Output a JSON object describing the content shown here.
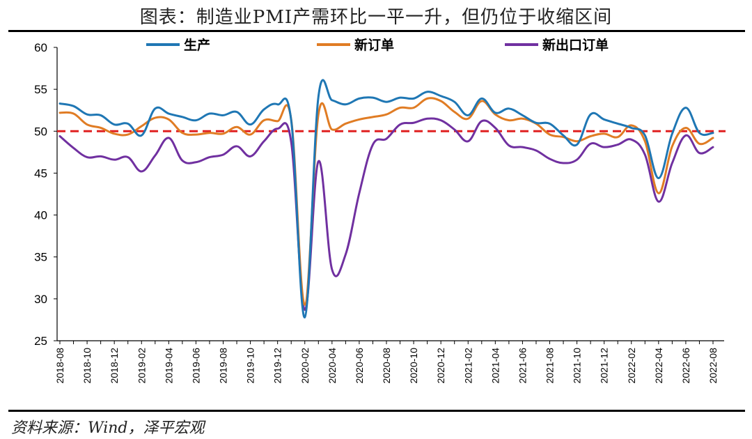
{
  "title": "图表：制造业PMI产需环比一平一升，但仍位于收缩区间",
  "source": "资料来源：Wind，泽平宏观",
  "chart_data": {
    "type": "line",
    "title": "图表：制造业PMI产需环比一平一升，但仍位于收缩区间",
    "xlabel": "",
    "ylabel": "",
    "ylim": [
      25,
      60
    ],
    "yticks": [
      25,
      30,
      35,
      40,
      45,
      50,
      55,
      60
    ],
    "x": [
      "2018-08",
      "2018-09",
      "2018-10",
      "2018-11",
      "2018-12",
      "2019-01",
      "2019-02",
      "2019-03",
      "2019-04",
      "2019-05",
      "2019-06",
      "2019-07",
      "2019-08",
      "2019-09",
      "2019-10",
      "2019-11",
      "2019-12",
      "2020-01",
      "2020-02",
      "2020-03",
      "2020-04",
      "2020-05",
      "2020-06",
      "2020-07",
      "2020-08",
      "2020-09",
      "2020-10",
      "2020-11",
      "2020-12",
      "2021-01",
      "2021-02",
      "2021-03",
      "2021-04",
      "2021-05",
      "2021-06",
      "2021-07",
      "2021-08",
      "2021-09",
      "2021-10",
      "2021-11",
      "2021-12",
      "2022-01",
      "2022-02",
      "2022-03",
      "2022-04",
      "2022-05",
      "2022-06",
      "2022-07",
      "2022-08"
    ],
    "x_tick_labels": [
      "2018-08",
      "2018-10",
      "2018-12",
      "2019-02",
      "2019-04",
      "2019-06",
      "2019-08",
      "2019-10",
      "2019-12",
      "2020-02",
      "2020-04",
      "2020-06",
      "2020-08",
      "2020-10",
      "2020-12",
      "2021-02",
      "2021-04",
      "2021-06",
      "2021-08",
      "2021-10",
      "2021-12",
      "2022-02",
      "2022-04",
      "2022-06",
      "2022-08"
    ],
    "series": [
      {
        "name": "生产",
        "color": "#1F77B4",
        "values": [
          53.3,
          53.0,
          52.0,
          51.9,
          50.8,
          50.9,
          49.5,
          52.7,
          52.1,
          51.7,
          51.3,
          52.1,
          51.9,
          52.3,
          50.8,
          52.6,
          53.2,
          51.3,
          27.8,
          54.1,
          53.7,
          53.2,
          53.9,
          54.0,
          53.5,
          54.0,
          53.9,
          54.7,
          54.2,
          53.5,
          51.9,
          53.9,
          52.2,
          52.7,
          51.9,
          51.0,
          50.9,
          49.5,
          48.4,
          52.0,
          51.4,
          50.9,
          50.4,
          49.5,
          44.4,
          49.7,
          52.8,
          49.8,
          49.8
        ]
      },
      {
        "name": "新订单",
        "color": "#E07C24",
        "values": [
          52.2,
          52.1,
          50.8,
          50.4,
          49.7,
          49.6,
          50.6,
          51.6,
          51.4,
          49.8,
          49.6,
          49.8,
          49.7,
          50.5,
          49.6,
          51.3,
          51.2,
          51.4,
          29.3,
          52.0,
          50.2,
          50.9,
          51.4,
          51.7,
          52.0,
          52.8,
          52.8,
          53.9,
          53.6,
          52.3,
          51.5,
          53.6,
          52.0,
          51.3,
          51.5,
          50.9,
          49.6,
          49.3,
          48.8,
          49.4,
          49.7,
          49.3,
          50.7,
          48.8,
          42.6,
          48.2,
          50.4,
          48.5,
          49.2
        ]
      },
      {
        "name": "新出口订单",
        "color": "#7030A0",
        "values": [
          49.4,
          48.0,
          46.9,
          47.0,
          46.6,
          46.9,
          45.2,
          47.1,
          49.2,
          46.5,
          46.3,
          46.9,
          47.2,
          48.2,
          47.0,
          48.8,
          50.3,
          48.7,
          28.7,
          46.4,
          33.5,
          35.3,
          42.6,
          48.4,
          49.1,
          50.8,
          51.0,
          51.5,
          51.3,
          50.2,
          48.8,
          51.2,
          50.4,
          48.3,
          48.1,
          47.7,
          46.7,
          46.2,
          46.6,
          48.5,
          48.1,
          48.4,
          49.0,
          47.2,
          41.6,
          46.2,
          49.5,
          47.4,
          48.1
        ]
      }
    ],
    "reference_line": {
      "value": 50,
      "color": "#E02020",
      "style": "dashed"
    },
    "legend": {
      "position": "top"
    }
  }
}
